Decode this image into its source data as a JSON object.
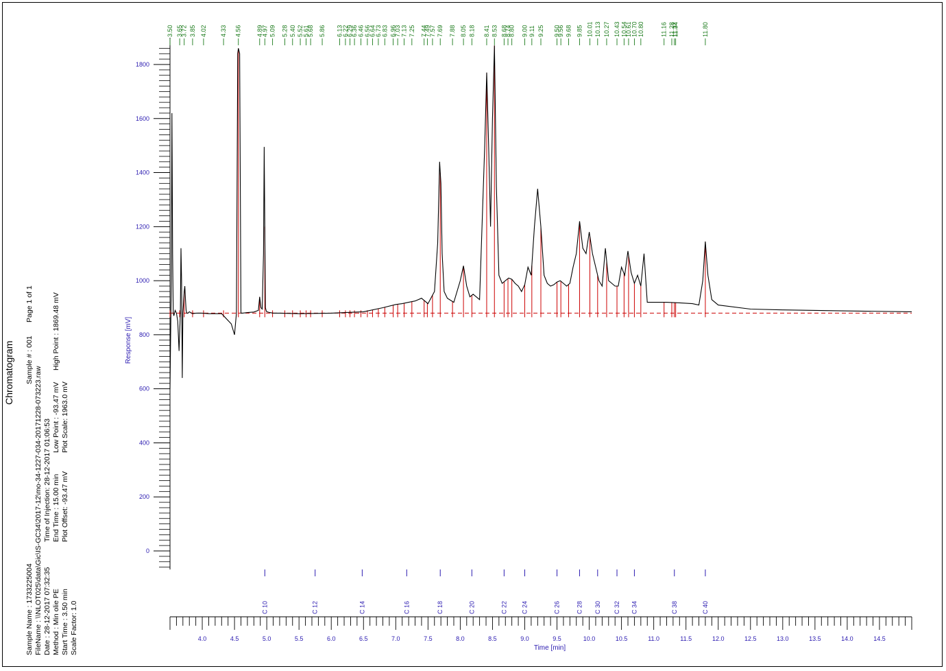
{
  "info": {
    "title": "Chromatogram",
    "sample_name": "Sample Name : 1733225004",
    "sample_no": "Sample # : 001",
    "page": "Page 1 of 1",
    "file_name": "FileName   : \\\\NLOT025\\data\\Gic\\IS-GC34\\2017-12\\mo-34-1227-034-20171228-073223.raw",
    "date": "Date : 28-12-2017 07:32:35",
    "time_of_injection": "Time of Injection: 28-12-2017 01:06:53",
    "method": "Method     : Min olie PE",
    "start_time": "Start Time  : 3.50 min",
    "end_time": "End Time    : 15.00 min",
    "low_point": "Low Point : -93.47 mV",
    "high_point": "High Point : 1869.48 mV",
    "scale_factor": "Scale Factor:  1.0",
    "plot_offset": "Plot Offset: -93.47 mV",
    "plot_scale": "Plot Scale: 1963.0 mV"
  },
  "colors": {
    "trace": "#000000",
    "peak_marker": "#cc0000",
    "baseline": "#cc0000",
    "axis": "#2a1ab0",
    "peak_label": "#1a7a1a",
    "frame": "#000000"
  },
  "chart_data": {
    "type": "line",
    "xlabel": "Time [min]",
    "ylabel": "Response [mV]",
    "xlim": [
      3.5,
      15.0
    ],
    "ylim": [
      -93.47,
      1869.48
    ],
    "x_ticks": [
      "4.0",
      "4.5",
      "5.0",
      "5.5",
      "6.0",
      "6.5",
      "7.0",
      "7.5",
      "8.0",
      "8.5",
      "9.0",
      "9.5",
      "10.0",
      "10.5",
      "11.0",
      "11.5",
      "12.0",
      "12.5",
      "13.0",
      "13.5",
      "14.0",
      "14.5"
    ],
    "y_ticks": [
      "0",
      "200",
      "400",
      "600",
      "800",
      "1000",
      "1200",
      "1400",
      "1600",
      "1800"
    ],
    "baseline_mv": 880,
    "peak_labels": [
      "3.50",
      "3.65",
      "3.72",
      "3.85",
      "4.02",
      "4.33",
      "4.56",
      "4.89",
      "4.97",
      "5.09",
      "5.28",
      "5.40",
      "5.52",
      "5.61",
      "5.68",
      "5.86",
      "6.13",
      "6.22",
      "6.29",
      "6.36",
      "6.46",
      "6.56",
      "6.64",
      "6.73",
      "6.83",
      "6.96",
      "7.03",
      "7.13",
      "7.25",
      "7.44",
      "7.49",
      "7.57",
      "7.69",
      "7.88",
      "8.05",
      "8.18",
      "8.41",
      "8.53",
      "8.68",
      "8.74",
      "8.80",
      "9.00",
      "9.11",
      "9.25",
      "9.50",
      "9.56",
      "9.68",
      "9.85",
      "10.01",
      "10.13",
      "10.27",
      "10.43",
      "10.54",
      "10.61",
      "10.70",
      "10.80",
      "11.16",
      "11.28",
      "11.32",
      "11.34",
      "11.80"
    ],
    "peak_markers": [
      3.5,
      3.65,
      3.72,
      3.85,
      4.02,
      4.33,
      4.56,
      4.89,
      4.97,
      5.09,
      5.28,
      5.4,
      5.52,
      5.61,
      5.68,
      5.86,
      6.13,
      6.22,
      6.29,
      6.36,
      6.46,
      6.56,
      6.64,
      6.73,
      6.83,
      6.96,
      7.03,
      7.13,
      7.25,
      7.44,
      7.49,
      7.57,
      7.69,
      7.88,
      8.05,
      8.18,
      8.41,
      8.53,
      8.68,
      8.74,
      8.8,
      9.0,
      9.11,
      9.25,
      9.5,
      9.56,
      9.68,
      9.85,
      10.01,
      10.13,
      10.27,
      10.43,
      10.54,
      10.61,
      10.7,
      10.8,
      11.16,
      11.28,
      11.32,
      11.34,
      11.8
    ],
    "series": [
      {
        "x": [
          3.5,
          3.52,
          3.53,
          3.54,
          3.55,
          3.56,
          3.57,
          3.58,
          3.6,
          3.62,
          3.64,
          3.66,
          3.67,
          3.68,
          3.69,
          3.7,
          3.71,
          3.72,
          3.73,
          3.74,
          3.75,
          3.76,
          3.78,
          3.8,
          3.85,
          3.9,
          4.0,
          4.1,
          4.2,
          4.3,
          4.45,
          4.5,
          4.53,
          4.55,
          4.56,
          4.57,
          4.58,
          4.6,
          4.62,
          4.7,
          4.8,
          4.87,
          4.89,
          4.91,
          4.93,
          4.95,
          4.96,
          4.97,
          4.98,
          4.99,
          5.0,
          5.05,
          5.1,
          5.2,
          5.5,
          6.0,
          6.5,
          6.8,
          7.0,
          7.1,
          7.2,
          7.3,
          7.4,
          7.5,
          7.6,
          7.65,
          7.68,
          7.7,
          7.72,
          7.75,
          7.8,
          7.9,
          8.0,
          8.05,
          8.1,
          8.15,
          8.2,
          8.3,
          8.38,
          8.41,
          8.44,
          8.47,
          8.5,
          8.53,
          8.56,
          8.6,
          8.65,
          8.7,
          8.75,
          8.8,
          8.85,
          8.9,
          8.95,
          9.0,
          9.05,
          9.1,
          9.15,
          9.2,
          9.25,
          9.3,
          9.35,
          9.4,
          9.45,
          9.5,
          9.55,
          9.6,
          9.65,
          9.7,
          9.75,
          9.8,
          9.85,
          9.9,
          9.95,
          10.0,
          10.05,
          10.1,
          10.15,
          10.2,
          10.25,
          10.3,
          10.35,
          10.4,
          10.45,
          10.5,
          10.55,
          10.6,
          10.65,
          10.7,
          10.75,
          10.8,
          10.85,
          10.9,
          11.0,
          11.2,
          11.4,
          11.6,
          11.7,
          11.76,
          11.8,
          11.84,
          11.9,
          12.0,
          12.5,
          13.0,
          14.0,
          15.0
        ],
        "y": [
          600,
          1000,
          1620,
          1100,
          880,
          870,
          880,
          890,
          880,
          850,
          740,
          880,
          1120,
          1000,
          640,
          880,
          920,
          960,
          980,
          930,
          890,
          880,
          880,
          885,
          878,
          880,
          880,
          878,
          878,
          878,
          840,
          800,
          880,
          1840,
          1860,
          1850,
          1840,
          880,
          880,
          882,
          884,
          890,
          940,
          900,
          895,
          1100,
          1495,
          1200,
          900,
          890,
          885,
          882,
          880,
          880,
          878,
          880,
          885,
          900,
          912,
          915,
          920,
          925,
          935,
          915,
          960,
          1140,
          1440,
          1360,
          1100,
          960,
          935,
          920,
          1000,
          1055,
          980,
          940,
          950,
          930,
          1500,
          1770,
          1500,
          1200,
          1600,
          1870,
          1350,
          1020,
          990,
          1000,
          1010,
          1005,
          990,
          980,
          960,
          985,
          1050,
          1020,
          1200,
          1340,
          1200,
          1020,
          990,
          980,
          985,
          995,
          1000,
          990,
          980,
          990,
          1050,
          1100,
          1220,
          1120,
          1100,
          1180,
          1100,
          1050,
          1000,
          980,
          1120,
          1000,
          990,
          980,
          980,
          1050,
          1020,
          1110,
          1030,
          990,
          1020,
          980,
          1100,
          920,
          920,
          920,
          918,
          915,
          910,
          1000,
          1145,
          1020,
          930,
          910,
          895,
          892,
          888,
          885
        ]
      }
    ],
    "carbon_markers": [
      {
        "label": "C 10",
        "x": 4.97
      },
      {
        "label": "C 12",
        "x": 5.75
      },
      {
        "label": "C 14",
        "x": 6.48
      },
      {
        "label": "C 16",
        "x": 7.17
      },
      {
        "label": "C 18",
        "x": 7.69
      },
      {
        "label": "C 20",
        "x": 8.18
      },
      {
        "label": "C 22",
        "x": 8.68
      },
      {
        "label": "C 24",
        "x": 9.0
      },
      {
        "label": "C 26",
        "x": 9.5
      },
      {
        "label": "C 28",
        "x": 9.85
      },
      {
        "label": "C 30",
        "x": 10.13
      },
      {
        "label": "C 32",
        "x": 10.43
      },
      {
        "label": "C 34",
        "x": 10.7
      },
      {
        "label": "C 38",
        "x": 11.32
      },
      {
        "label": "C 40",
        "x": 11.8
      }
    ]
  }
}
